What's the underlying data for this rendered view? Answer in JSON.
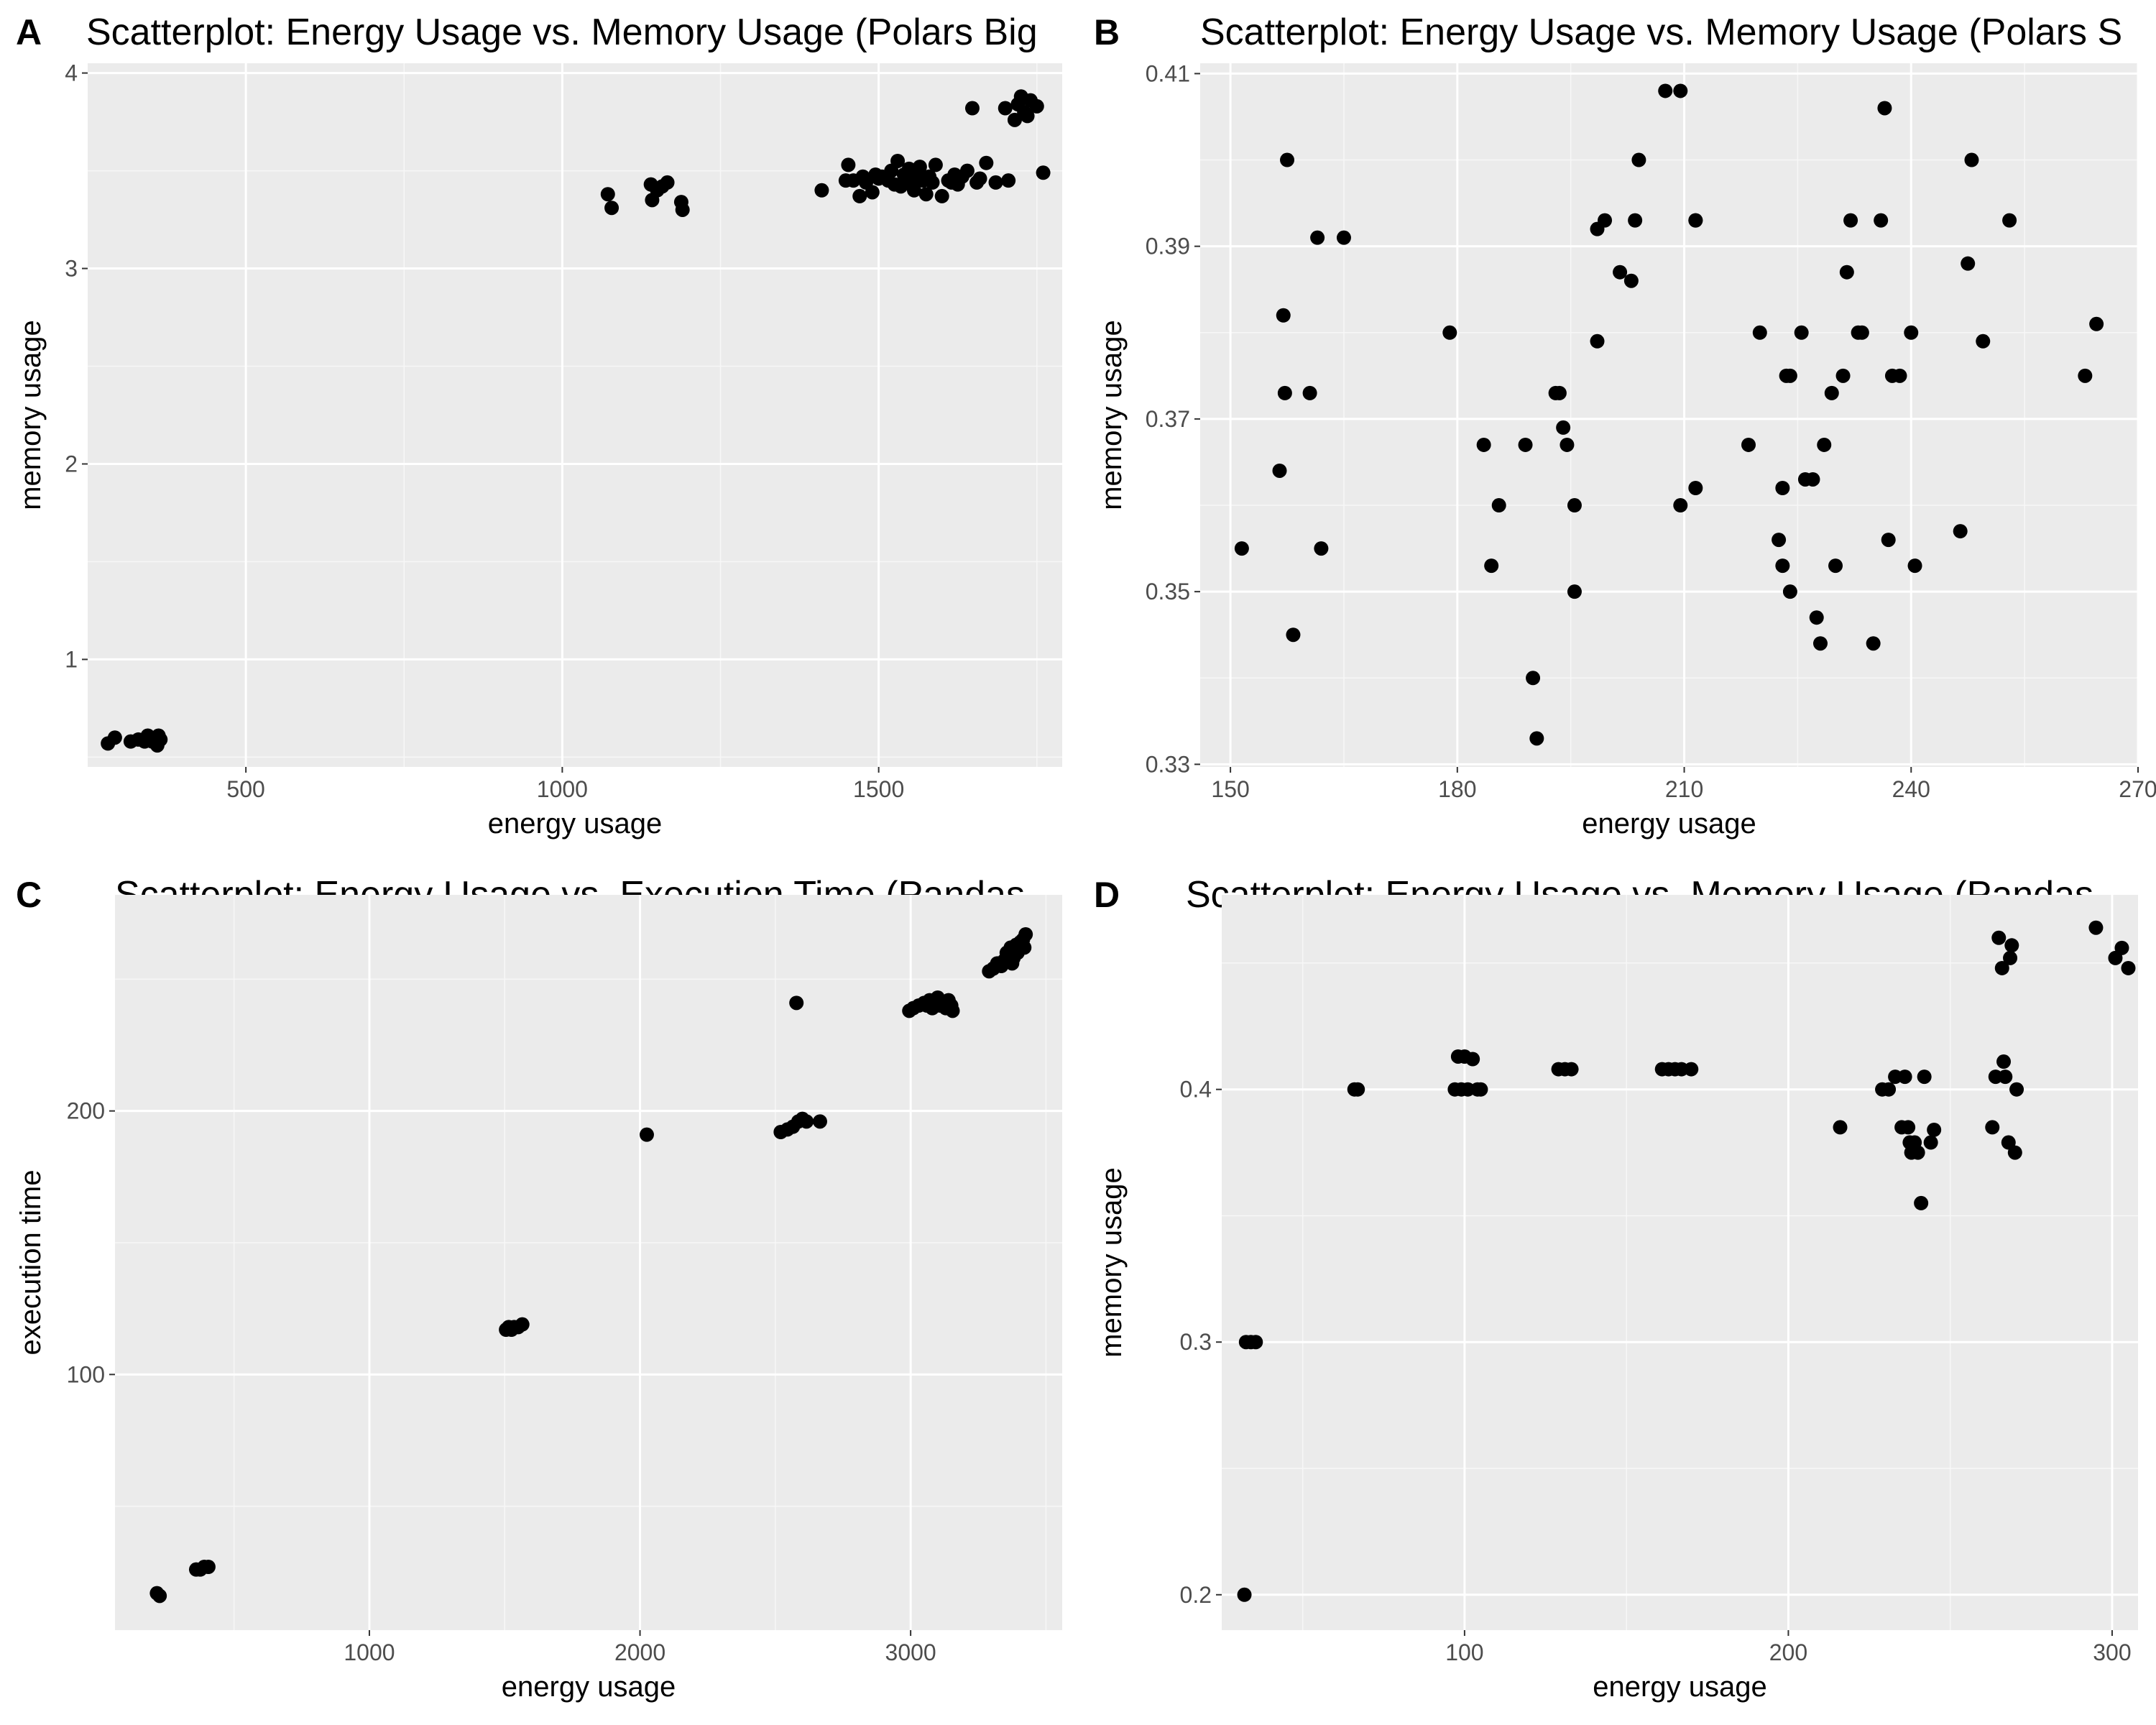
{
  "chart_data": [
    {
      "type": "scatter",
      "tag": "A",
      "title": "Scatterplot: Energy Usage vs. Memory Usage (Polars Big",
      "xlabel": "energy usage",
      "ylabel": "memory usage",
      "xlim": [
        250,
        1790
      ],
      "ylim": [
        0.45,
        4.05
      ],
      "xticks": [
        500,
        1000,
        1500
      ],
      "yticks": [
        1,
        2,
        3,
        4
      ],
      "xtick_labels": [
        "500",
        "1000",
        "1500"
      ],
      "ytick_labels": [
        "1",
        "2",
        "3",
        "4"
      ],
      "grid": true,
      "x": [
        282,
        293,
        318,
        330,
        340,
        345,
        352,
        358,
        360,
        362,
        365,
        1072,
        1078,
        1140,
        1142,
        1150,
        1158,
        1166,
        1188,
        1190,
        1410,
        1448,
        1452,
        1460,
        1470,
        1475,
        1480,
        1490,
        1495,
        1500,
        1505,
        1515,
        1520,
        1525,
        1530,
        1535,
        1540,
        1545,
        1548,
        1552,
        1556,
        1560,
        1565,
        1570,
        1575,
        1580,
        1585,
        1590,
        1600,
        1610,
        1615,
        1620,
        1625,
        1632,
        1640,
        1648,
        1655,
        1660,
        1670,
        1685,
        1700,
        1705,
        1715,
        1720,
        1725,
        1730,
        1735,
        1740,
        1750,
        1760
      ],
      "y": [
        0.57,
        0.6,
        0.58,
        0.59,
        0.58,
        0.61,
        0.58,
        0.6,
        0.56,
        0.61,
        0.59,
        3.38,
        3.31,
        3.43,
        3.35,
        3.4,
        3.42,
        3.44,
        3.34,
        3.3,
        3.4,
        3.45,
        3.53,
        3.45,
        3.37,
        3.47,
        3.44,
        3.39,
        3.48,
        3.46,
        3.47,
        3.45,
        3.5,
        3.43,
        3.55,
        3.42,
        3.48,
        3.46,
        3.51,
        3.44,
        3.4,
        3.48,
        3.52,
        3.45,
        3.38,
        3.47,
        3.44,
        3.53,
        3.37,
        3.45,
        3.44,
        3.48,
        3.43,
        3.47,
        3.5,
        3.82,
        3.44,
        3.46,
        3.54,
        3.44,
        3.82,
        3.45,
        3.76,
        3.84,
        3.88,
        3.8,
        3.78,
        3.86,
        3.83,
        3.49
      ]
    },
    {
      "type": "scatter",
      "tag": "B",
      "title": "Scatterplot: Energy Usage vs. Memory Usage (Polars S",
      "xlabel": "energy usage",
      "ylabel": "memory usage",
      "xlim": [
        146,
        270
      ],
      "ylim": [
        0.3297,
        0.4112
      ],
      "xticks": [
        150,
        180,
        210,
        240,
        270
      ],
      "yticks": [
        0.33,
        0.35,
        0.37,
        0.39,
        0.41
      ],
      "xtick_labels": [
        "150",
        "180",
        "210",
        "240",
        "270"
      ],
      "ytick_labels": [
        "0.33",
        "0.35",
        "0.37",
        "0.39",
        "0.41"
      ],
      "grid": true,
      "x": [
        151.5,
        156.5,
        157,
        157.2,
        157.5,
        158.3,
        160.5,
        161.5,
        162,
        165,
        179,
        183.5,
        184.5,
        185.5,
        189,
        190,
        190.5,
        193,
        194,
        193.5,
        194.5,
        195.5,
        195.5,
        198.5,
        198.5,
        199.5,
        201.5,
        203,
        203.5,
        204,
        207.5,
        209.5,
        209.5,
        211.5,
        211.5,
        211.5,
        218.5,
        220,
        222.5,
        223,
        223,
        223.5,
        224,
        224,
        225.5,
        226,
        227,
        227.5,
        228,
        228.5,
        229.5,
        230,
        231,
        231.5,
        232,
        233,
        233.5,
        235,
        236,
        236.5,
        237,
        237.5,
        238.5,
        240,
        240.5,
        246.5,
        247.5,
        248,
        249.5,
        253,
        263,
        264.5
      ],
      "y": [
        0.355,
        0.364,
        0.382,
        0.373,
        0.4,
        0.345,
        0.373,
        0.391,
        0.355,
        0.391,
        0.38,
        0.367,
        0.353,
        0.36,
        0.367,
        0.34,
        0.333,
        0.373,
        0.369,
        0.373,
        0.367,
        0.35,
        0.36,
        0.379,
        0.392,
        0.393,
        0.387,
        0.386,
        0.393,
        0.4,
        0.408,
        0.408,
        0.36,
        0.393,
        0.393,
        0.362,
        0.367,
        0.38,
        0.356,
        0.353,
        0.362,
        0.375,
        0.35,
        0.375,
        0.38,
        0.363,
        0.363,
        0.347,
        0.344,
        0.367,
        0.373,
        0.353,
        0.375,
        0.387,
        0.393,
        0.38,
        0.38,
        0.344,
        0.393,
        0.406,
        0.356,
        0.375,
        0.375,
        0.38,
        0.353,
        0.357,
        0.388,
        0.4,
        0.379,
        0.393,
        0.375,
        0.381
      ]
    },
    {
      "type": "scatter",
      "tag": "C",
      "title": "Scatterplot: Energy Usage vs. Execution Time (Pandas",
      "xlabel": "energy usage",
      "ylabel": "execution time",
      "xlim": [
        60,
        3560
      ],
      "ylim": [
        3,
        282
      ],
      "xticks": [
        1000,
        2000,
        3000
      ],
      "yticks": [
        100,
        200
      ],
      "xtick_labels": [
        "1000",
        "2000",
        "3000"
      ],
      "ytick_labels": [
        "100",
        "200"
      ],
      "grid": true,
      "x": [
        215,
        225,
        360,
        375,
        390,
        405,
        1505,
        1515,
        1525,
        1535,
        1550,
        1565,
        2025,
        2520,
        2545,
        2565,
        2585,
        2600,
        2615,
        2665,
        2578,
        2995,
        3010,
        3030,
        3050,
        3060,
        3070,
        3080,
        3090,
        3095,
        3100,
        3110,
        3120,
        3130,
        3140,
        3150,
        3155,
        3290,
        3305,
        3320,
        3335,
        3345,
        3355,
        3365,
        3370,
        3375,
        3380,
        3385,
        3390,
        3395,
        3400,
        3405,
        3410,
        3415,
        3420,
        3425
      ],
      "y": [
        17,
        16,
        26,
        26,
        27,
        27,
        117,
        118,
        117,
        118,
        118,
        119,
        191,
        192,
        193,
        194,
        196,
        197,
        196,
        196,
        241,
        238,
        239,
        240,
        241,
        240,
        242,
        239,
        241,
        240,
        243,
        240,
        241,
        239,
        242,
        240,
        238,
        253,
        254,
        256,
        255,
        257,
        260,
        259,
        262,
        256,
        258,
        261,
        263,
        260,
        262,
        264,
        263,
        265,
        262,
        267
      ]
    },
    {
      "type": "scatter",
      "tag": "D",
      "title": "Scatterplot: Energy Usage vs. Memory Usage (Pandas",
      "xlabel": "energy usage",
      "ylabel": "memory usage",
      "xlim": [
        25,
        308
      ],
      "ylim": [
        0.186,
        0.477
      ],
      "xticks": [
        100,
        200,
        300
      ],
      "yticks": [
        0.2,
        0.3,
        0.4
      ],
      "xtick_labels": [
        "100",
        "200",
        "300"
      ],
      "ytick_labels": [
        "0.2",
        "0.3",
        "0.4"
      ],
      "grid": true,
      "x": [
        32,
        32.5,
        34,
        35.5,
        66,
        67,
        97,
        98,
        99,
        100,
        101,
        102.5,
        104,
        105,
        129,
        131,
        133,
        161,
        163,
        165,
        167,
        170,
        216,
        229,
        231,
        233,
        235,
        236,
        237,
        237.5,
        238,
        239,
        240,
        241,
        242,
        244,
        245,
        263,
        264,
        265,
        266,
        266.5,
        267,
        268,
        268.5,
        269,
        270,
        270.5,
        295,
        301,
        303,
        305
      ],
      "y": [
        0.2,
        0.3,
        0.3,
        0.3,
        0.4,
        0.4,
        0.4,
        0.413,
        0.4,
        0.413,
        0.4,
        0.412,
        0.4,
        0.4,
        0.408,
        0.408,
        0.408,
        0.408,
        0.408,
        0.408,
        0.408,
        0.408,
        0.385,
        0.4,
        0.4,
        0.405,
        0.385,
        0.405,
        0.385,
        0.379,
        0.375,
        0.379,
        0.375,
        0.355,
        0.405,
        0.379,
        0.384,
        0.385,
        0.405,
        0.46,
        0.448,
        0.411,
        0.405,
        0.379,
        0.452,
        0.457,
        0.375,
        0.4,
        0.464,
        0.452,
        0.456,
        0.448
      ]
    }
  ]
}
